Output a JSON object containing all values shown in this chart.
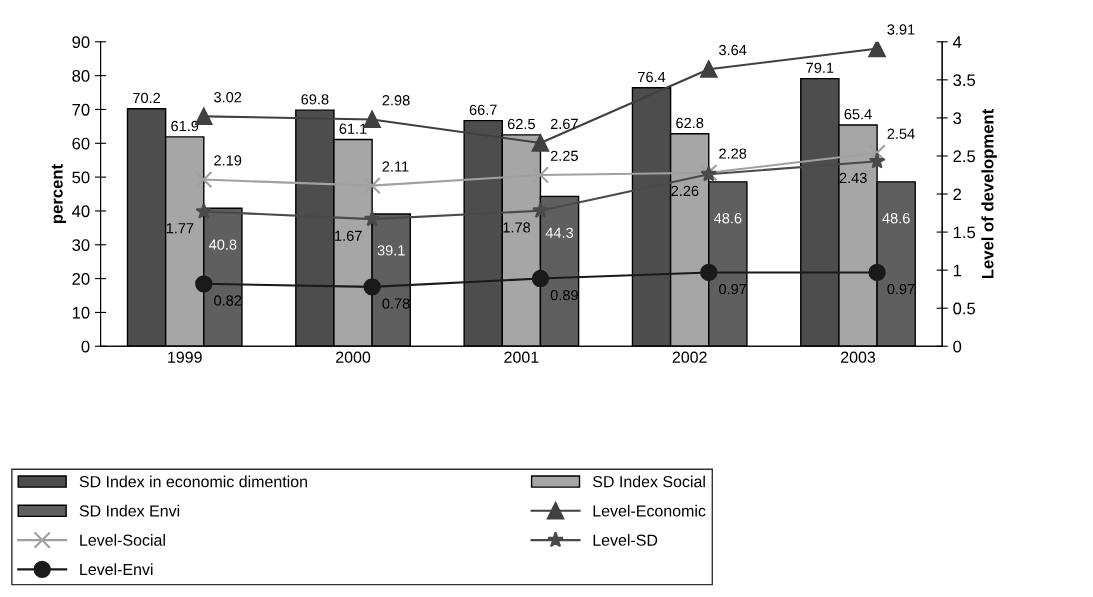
{
  "chart_data": {
    "type": "bar",
    "ylabel": "percent",
    "y2label": "Level of development",
    "categories": [
      "1999",
      "2000",
      "2001",
      "2002",
      "2003"
    ],
    "series": [
      {
        "name": "SD Index in economic dimention",
        "color": "#4d4d4d",
        "values": [
          70.2,
          69.8,
          66.7,
          76.4,
          79.1
        ]
      },
      {
        "name": "SD Index Social",
        "color": "#a6a6a6",
        "values": [
          61.9,
          61.1,
          62.5,
          62.8,
          65.4
        ]
      },
      {
        "name": "SD Index Envi",
        "color": "#5f5f5f",
        "values": [
          40.8,
          39.1,
          44.3,
          48.6,
          48.6
        ]
      },
      {
        "name": "Level-Economic",
        "type": "line",
        "axis": "y2",
        "marker": "triangle",
        "color": "#404040",
        "values": [
          3.02,
          2.98,
          2.67,
          3.64,
          3.91
        ]
      },
      {
        "name": "Level-Social",
        "type": "line",
        "axis": "y2",
        "marker": "cross",
        "color": "#a0a0a0",
        "values": [
          2.19,
          2.11,
          2.25,
          2.28,
          2.54
        ]
      },
      {
        "name": "Level-SD",
        "type": "line",
        "axis": "y2",
        "marker": "star",
        "color": "#4a4a4a",
        "values": [
          1.77,
          1.67,
          1.78,
          2.26,
          2.43
        ]
      },
      {
        "name": "Level-Envi",
        "type": "line",
        "axis": "y2",
        "marker": "circle",
        "color": "#1a1a1a",
        "values": [
          0.82,
          0.78,
          0.89,
          0.97,
          0.97
        ]
      }
    ],
    "ylim": [
      0,
      90
    ],
    "yticks": [
      0,
      10,
      20,
      30,
      40,
      50,
      60,
      70,
      80,
      90
    ],
    "y2lim": [
      0,
      4
    ],
    "y2ticks": [
      0,
      0.5,
      1,
      1.5,
      2,
      2.5,
      3,
      3.5,
      4
    ],
    "data_labels": true,
    "grid": false,
    "legend": "bottom"
  }
}
